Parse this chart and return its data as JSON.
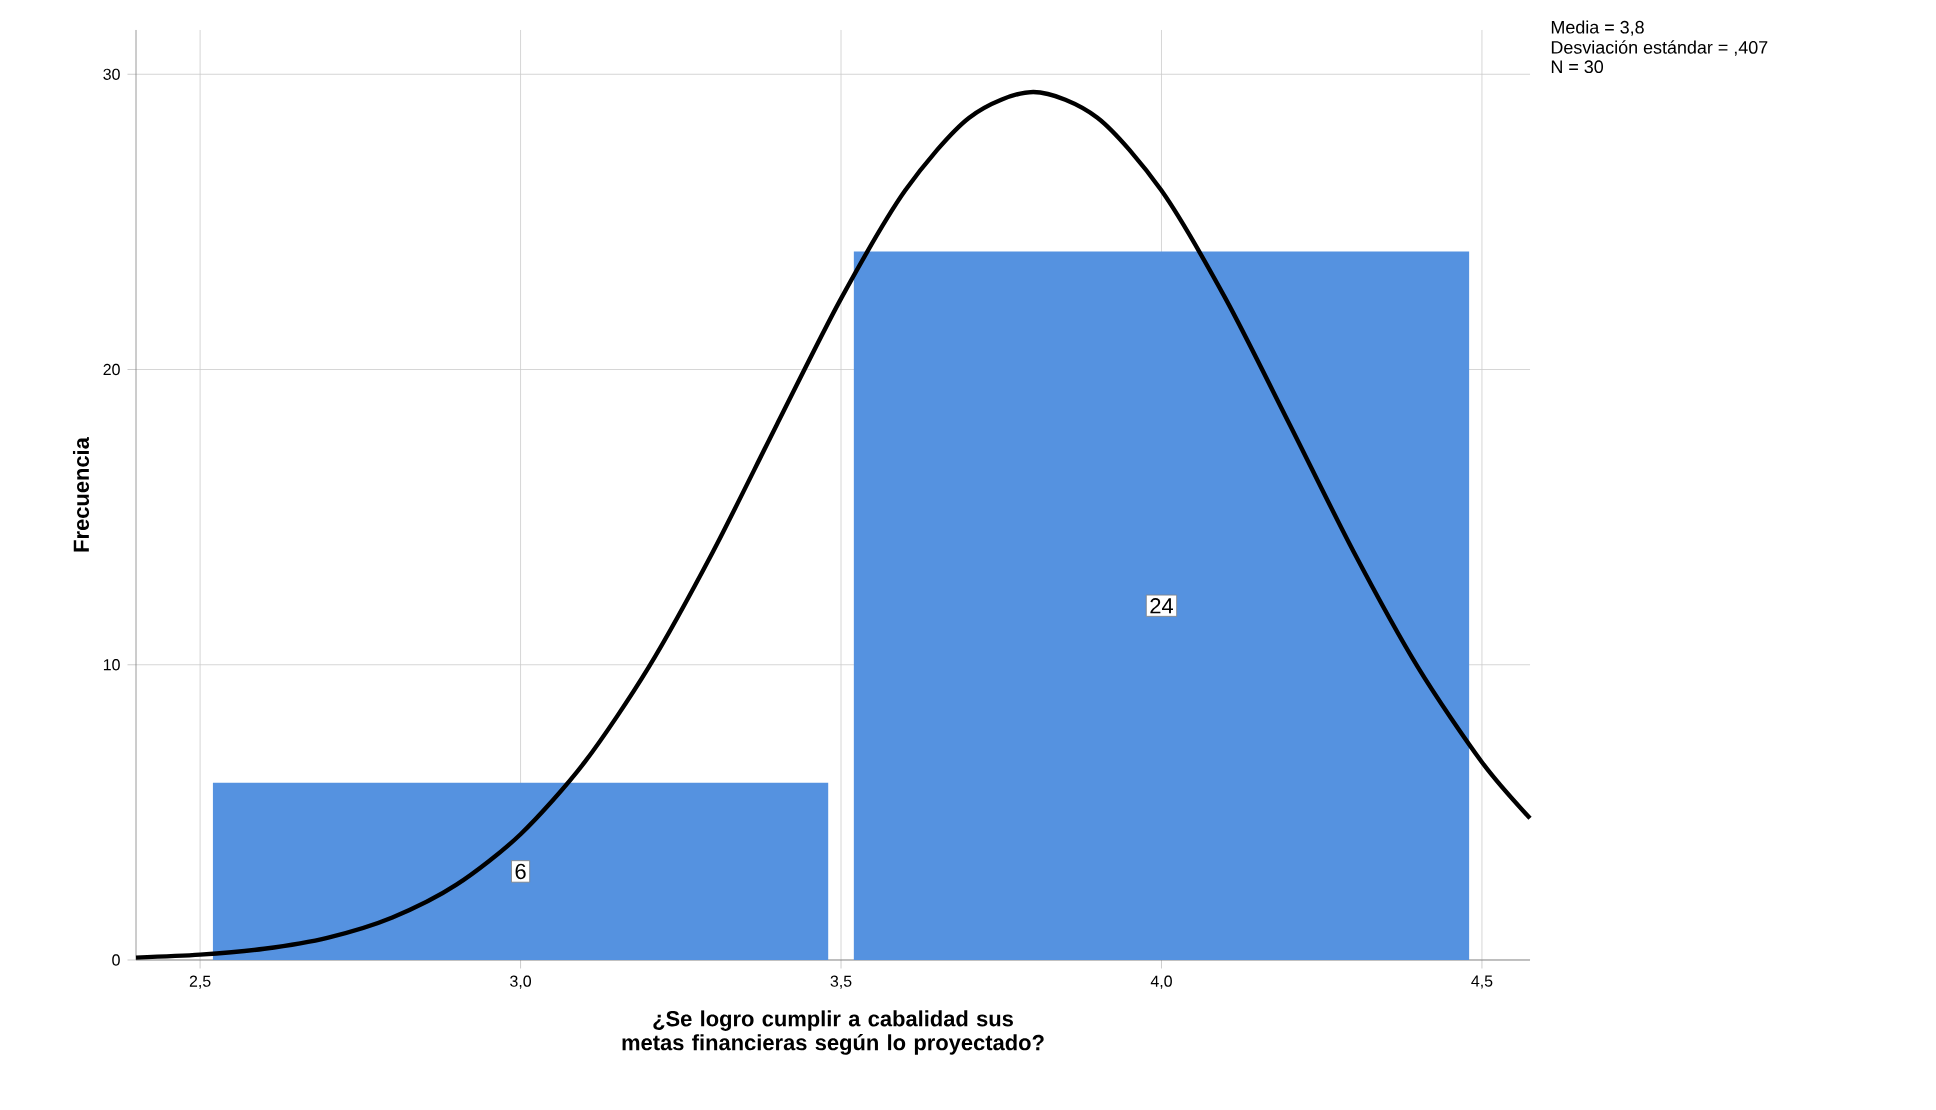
{
  "chart_data": {
    "type": "histogram",
    "xlabel": "¿Se logro cumplir a cabalidad sus metas financieras según lo proyectado?",
    "ylabel": "Frecuencia",
    "annotations": [
      "Media = 3,8",
      "Desviación estándar = ,407",
      "N = 30"
    ],
    "bins": [
      2.5,
      3.5,
      4.5
    ],
    "series": [
      {
        "color": "#5592e0",
        "values": [
          6,
          24
        ],
        "value_labels": [
          "6",
          "24"
        ]
      },
      {
        "type": "line",
        "color": "#000000",
        "x": [
          2.4,
          2.5,
          2.6,
          2.7,
          2.8,
          2.9,
          3.0,
          3.1,
          3.2,
          3.3,
          3.4,
          3.5,
          3.6,
          3.7,
          3.8,
          3.9,
          4.0,
          4.1,
          4.2,
          4.3,
          4.4,
          4.5,
          4.575
        ],
        "values": [
          0.08,
          0.18,
          0.38,
          0.76,
          1.44,
          2.55,
          4.26,
          6.7,
          9.92,
          13.82,
          18.14,
          22.4,
          26.06,
          28.53,
          29.4,
          28.53,
          26.06,
          22.4,
          18.14,
          13.82,
          9.92,
          6.7,
          4.8
        ]
      }
    ],
    "xlim": [
      2.4,
      4.575
    ],
    "ylim": [
      0,
      31.5
    ],
    "xticks": [
      {
        "value": 2.5,
        "label": "2,5"
      },
      {
        "value": 3.0,
        "label": "3,0"
      },
      {
        "value": 3.5,
        "label": "3,5"
      },
      {
        "value": 4.0,
        "label": "4,0"
      },
      {
        "value": 4.5,
        "label": "4,5"
      }
    ],
    "yticks": [
      0,
      10,
      20,
      30
    ],
    "grid": true
  }
}
